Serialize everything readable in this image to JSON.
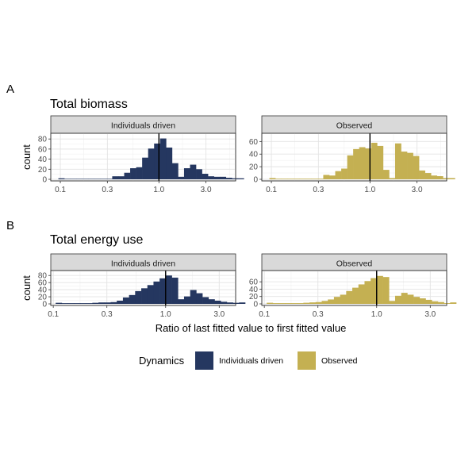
{
  "colors": {
    "individuals": "#253760",
    "observed": "#c4b052"
  },
  "legend": {
    "title": "Dynamics",
    "items": [
      {
        "label": "Individuals driven",
        "color": "#253760"
      },
      {
        "label": "Observed",
        "color": "#c4b052"
      }
    ]
  },
  "x_axis_title": "Ratio of last fitted value to first fitted value",
  "y_axis_title": "count",
  "chart_data": [
    {
      "type": "bar",
      "panel_letter": "A",
      "title": "Total biomass",
      "xscale": "log10",
      "xlim": [
        0.08,
        6.0
      ],
      "xticks": [
        0.1,
        0.3,
        1.0,
        3.0
      ],
      "xtick_labels": [
        "0.1",
        "0.3",
        "1.0",
        "3.0"
      ],
      "reference_x": 1.0,
      "facets": [
        {
          "strip": "Individuals driven",
          "series": "Individuals driven",
          "ylim": [
            0,
            85
          ],
          "yticks": [
            0,
            20,
            40,
            60,
            80
          ],
          "bin_start": 0.0955,
          "bin_ratio": 1.15,
          "counts": [
            2,
            1,
            1,
            1,
            1,
            1,
            1,
            1,
            1,
            6,
            6,
            13,
            22,
            24,
            43,
            61,
            71,
            81,
            63,
            32,
            5,
            22,
            29,
            20,
            11,
            6,
            5,
            5,
            3,
            2,
            2
          ]
        },
        {
          "strip": "Observed",
          "series": "Observed",
          "ylim": [
            0,
            68
          ],
          "yticks": [
            0,
            20,
            40,
            60
          ],
          "bin_start": 0.0955,
          "bin_ratio": 1.15,
          "counts": [
            2,
            1,
            1,
            1,
            1,
            1,
            1,
            1,
            1,
            7,
            6,
            13,
            17,
            38,
            48,
            51,
            49,
            58,
            53,
            15,
            2,
            57,
            44,
            42,
            37,
            14,
            10,
            6,
            5,
            2,
            2
          ]
        }
      ]
    },
    {
      "type": "bar",
      "panel_letter": "B",
      "title": "Total energy use",
      "xscale": "log10",
      "xlim": [
        0.095,
        4.2
      ],
      "xticks": [
        0.1,
        0.3,
        1.0,
        3.0
      ],
      "xtick_labels": [
        "0.1",
        "0.3",
        "1.0",
        "3.0"
      ],
      "reference_x": 1.0,
      "facets": [
        {
          "strip": "Individuals driven",
          "series": "Individuals driven",
          "ylim": [
            0,
            85
          ],
          "yticks": [
            0,
            20,
            40,
            60,
            80
          ],
          "bin_start": 0.105,
          "bin_ratio": 1.1335,
          "counts": [
            3,
            2,
            2,
            2,
            2,
            2,
            3,
            4,
            4,
            5,
            9,
            18,
            25,
            36,
            44,
            53,
            63,
            72,
            80,
            74,
            13,
            21,
            39,
            30,
            19,
            13,
            9,
            6,
            4,
            3,
            4
          ]
        },
        {
          "strip": "Observed",
          "series": "Observed",
          "ylim": [
            0,
            82
          ],
          "yticks": [
            0,
            20,
            40,
            60
          ],
          "bin_start": 0.105,
          "bin_ratio": 1.1335,
          "counts": [
            3,
            2,
            2,
            2,
            2,
            2,
            3,
            4,
            5,
            8,
            12,
            19,
            25,
            35,
            44,
            53,
            62,
            70,
            76,
            73,
            8,
            22,
            30,
            25,
            19,
            15,
            11,
            7,
            5,
            2,
            4
          ]
        }
      ]
    }
  ]
}
